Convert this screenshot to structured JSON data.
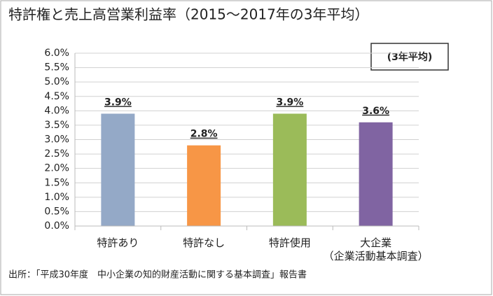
{
  "chart_data": {
    "type": "bar",
    "title": "特許権と売上高営業利益率（2015～2017年の3年平均）",
    "annotation": "(3年平均)",
    "source": "出所：「平成30年度　中小企業の知的財産活動に関する基本調査」報告書",
    "categories": [
      "特許あり",
      "特許なし",
      "特許使用",
      "大企業\n（企業活動基本調査）"
    ],
    "values": [
      3.9,
      2.8,
      3.9,
      3.6
    ],
    "value_labels": [
      "3.9%",
      "2.8%",
      "3.9%",
      "3.6%"
    ],
    "colors": [
      "#94a9c7",
      "#f79646",
      "#9bbb59",
      "#8064a2"
    ],
    "ylim": [
      0,
      6
    ],
    "yticks": [
      {
        "value": 0,
        "label": "0.0%"
      },
      {
        "value": 0.5,
        "label": "0.5%"
      },
      {
        "value": 1,
        "label": "1.0%"
      },
      {
        "value": 1.5,
        "label": "1.5%"
      },
      {
        "value": 2,
        "label": "2.0%"
      },
      {
        "value": 2.5,
        "label": "2.5%"
      },
      {
        "value": 3,
        "label": "3.0%"
      },
      {
        "value": 3.5,
        "label": "3.5%"
      },
      {
        "value": 4,
        "label": "4.0%"
      },
      {
        "value": 4.5,
        "label": "4.5%"
      },
      {
        "value": 5,
        "label": "5.0%"
      },
      {
        "value": 5.5,
        "label": "5.5%"
      },
      {
        "value": 6,
        "label": "6.0%"
      }
    ],
    "grid": true
  }
}
